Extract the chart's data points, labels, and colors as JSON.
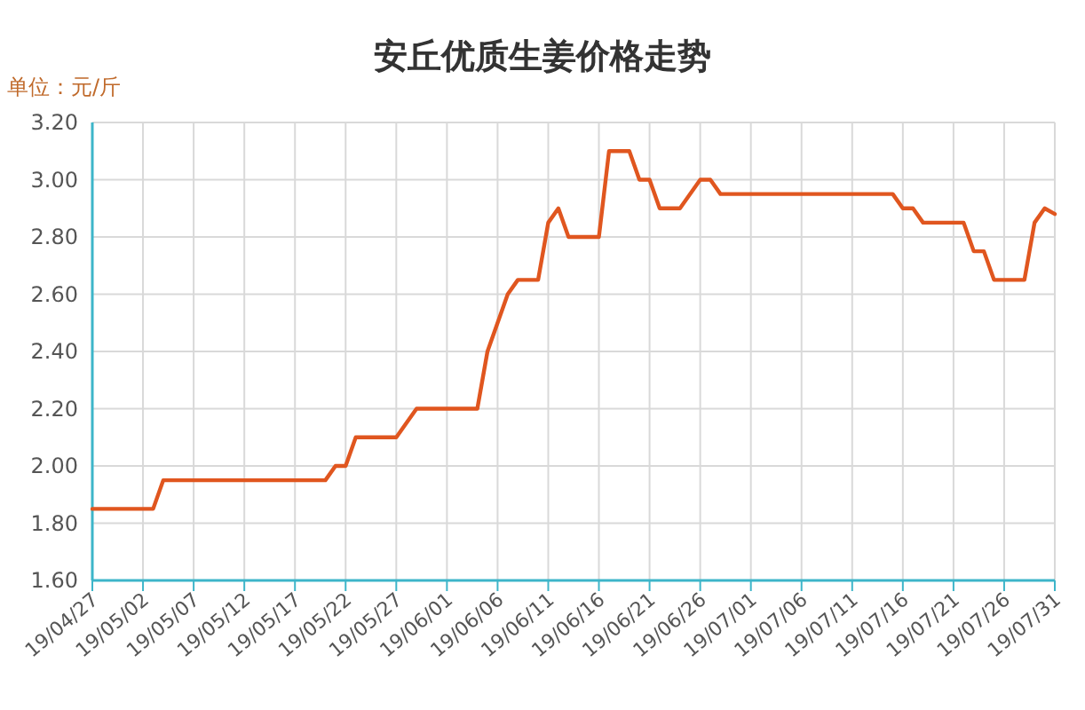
{
  "chart_data": {
    "type": "line",
    "title": "安丘优质生姜价格走势",
    "ylabel": "单位：元/斤",
    "x": [
      "--04-27",
      "--05-03",
      "--05-04",
      "--05-20",
      "--05-21",
      "--05-22",
      "--05-23",
      "--05-27",
      "--05-29",
      "--06-04",
      "--06-05",
      "--06-07",
      "--06-08",
      "--06-10",
      "--06-11",
      "--06-12",
      "--06-13",
      "--06-16",
      "--06-17",
      "--06-19",
      "--06-20",
      "--06-21",
      "--06-22",
      "--06-24",
      "--06-26",
      "--06-27",
      "--06-28",
      "--07-15",
      "--07-16",
      "--07-17",
      "--07-18",
      "--07-22",
      "--07-23",
      "--07-24",
      "--07-25",
      "--07-28",
      "--07-29",
      "--07-30",
      "--07-31"
    ],
    "series": [
      {
        "color": "#e0561f",
        "values": [
          1.85,
          1.85,
          1.95,
          1.95,
          2.0,
          2.0,
          2.1,
          2.1,
          2.2,
          2.2,
          2.4,
          2.6,
          2.65,
          2.65,
          2.85,
          2.9,
          2.8,
          2.8,
          3.1,
          3.1,
          3.0,
          3.0,
          2.9,
          2.9,
          3.0,
          3.0,
          2.95,
          2.95,
          2.9,
          2.9,
          2.85,
          2.85,
          2.75,
          2.75,
          2.65,
          2.65,
          2.85,
          2.9,
          2.88
        ]
      }
    ],
    "xlim": [
      "--04-27",
      "--07-31"
    ],
    "xticks": [
      {
        "value": "--04-27",
        "label": "19/04/27"
      },
      {
        "value": "--05-02",
        "label": "19/05/02"
      },
      {
        "value": "--05-07",
        "label": "19/05/07"
      },
      {
        "value": "--05-12",
        "label": "19/05/12"
      },
      {
        "value": "--05-17",
        "label": "19/05/17"
      },
      {
        "value": "--05-22",
        "label": "19/05/22"
      },
      {
        "value": "--05-27",
        "label": "19/05/27"
      },
      {
        "value": "--06-01",
        "label": "19/06/01"
      },
      {
        "value": "--06-06",
        "label": "19/06/06"
      },
      {
        "value": "--06-11",
        "label": "19/06/11"
      },
      {
        "value": "--06-16",
        "label": "19/06/16"
      },
      {
        "value": "--06-21",
        "label": "19/06/21"
      },
      {
        "value": "--06-26",
        "label": "19/06/26"
      },
      {
        "value": "--07-01",
        "label": "19/07/01"
      },
      {
        "value": "--07-06",
        "label": "19/07/06"
      },
      {
        "value": "--07-11",
        "label": "19/07/11"
      },
      {
        "value": "--07-16",
        "label": "19/07/16"
      },
      {
        "value": "--07-21",
        "label": "19/07/21"
      },
      {
        "value": "--07-26",
        "label": "19/07/26"
      },
      {
        "value": "--07-31",
        "label": "19/07/31"
      }
    ],
    "ylim": [
      1.6,
      3.2
    ],
    "yticks": [
      {
        "value": 1.6,
        "label": "1.60"
      },
      {
        "value": 1.8,
        "label": "1.80"
      },
      {
        "value": 2.0,
        "label": "2.00"
      },
      {
        "value": 2.2,
        "label": "2.20"
      },
      {
        "value": 2.4,
        "label": "2.40"
      },
      {
        "value": 2.6,
        "label": "2.60"
      },
      {
        "value": 2.8,
        "label": "2.80"
      },
      {
        "value": 3.0,
        "label": "3.00"
      },
      {
        "value": 3.2,
        "label": "3.20"
      }
    ],
    "grid": true,
    "marker": "none",
    "line_style": "solid"
  }
}
